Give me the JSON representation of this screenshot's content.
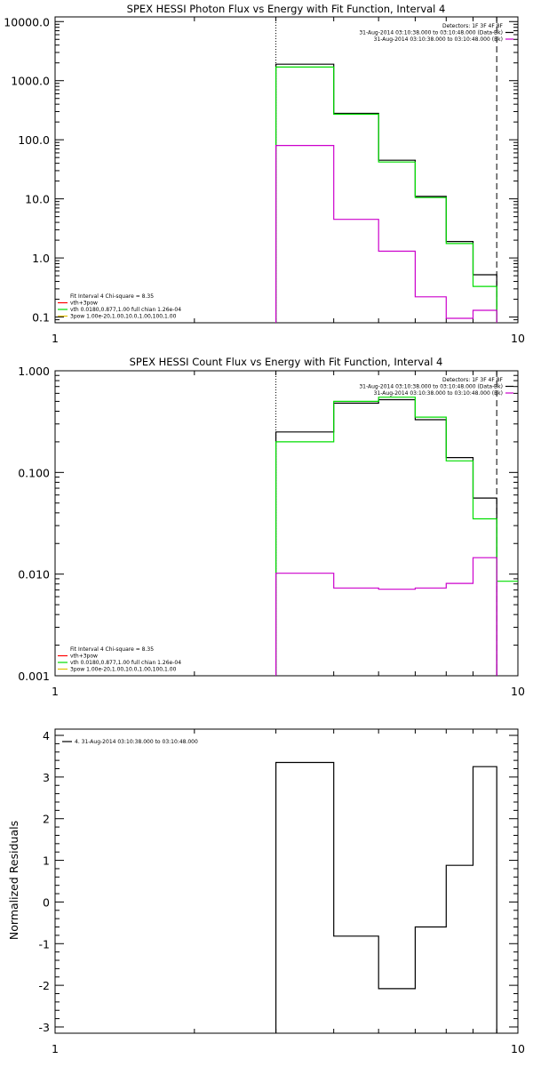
{
  "chart_data": [
    {
      "type": "line",
      "title": "SPEX HESSI Photon Flux vs Energy with Fit Function, Interval 4",
      "xscale": "log",
      "yscale": "log",
      "xlim": [
        1,
        10
      ],
      "ylim": [
        0.08,
        12000
      ],
      "xticks": [
        {
          "v": 1,
          "label": "1"
        },
        {
          "v": 10,
          "label": "10"
        }
      ],
      "yticks": [
        {
          "v": 0.1,
          "label": "0.1"
        },
        {
          "v": 1,
          "label": "1.0"
        },
        {
          "v": 10,
          "label": "10.0"
        },
        {
          "v": 100,
          "label": "100.0"
        },
        {
          "v": 1000,
          "label": "1000.0"
        },
        {
          "v": 10000,
          "label": "10000.0"
        }
      ],
      "ylabel": "",
      "xlabel": "",
      "vlines": [
        {
          "x": 3,
          "style": "dotted"
        },
        {
          "x": 9,
          "style": "dashed"
        }
      ],
      "legend_top_right": [
        "Detectors: 1F 3F 4F 8F",
        "31-Aug-2014 03:10:38.000 to 03:10:48.000 (Data-Bk)",
        "31-Aug-2014 03:10:38.000 to 03:10:48.000 (Bk)"
      ],
      "legend_top_right_colors": [
        "#ffffff",
        "#000000",
        "#cc00cc"
      ],
      "legend_bottom_left": [
        "Fit Interval 4   Chi-square = 8.35",
        "vth+3pow",
        "vth 0.0180,0.877,1.00  full chian 1.26e-04",
        "3pow 1.00e-20,1.00,10.0,1.00,100,1.00"
      ],
      "legend_bottom_left_colors": [
        "#ffffff",
        "#ff0000",
        "#00dd00",
        "#e0c000"
      ],
      "series": [
        {
          "name": "Data-Bk",
          "color": "#000000",
          "edges": [
            3,
            4,
            5,
            6,
            7,
            8,
            9
          ],
          "values": [
            1900,
            280,
            45,
            11,
            1.9,
            0.52
          ]
        },
        {
          "name": "vth",
          "color": "#00dd00",
          "edges": [
            3,
            4,
            5,
            6,
            7,
            8,
            9
          ],
          "values": [
            1700,
            270,
            42,
            10.5,
            1.75,
            0.33
          ]
        },
        {
          "name": "Bk",
          "color": "#cc00cc",
          "edges": [
            3,
            4,
            5,
            6,
            7,
            8,
            9
          ],
          "values": [
            80,
            4.5,
            1.3,
            0.22,
            0.095,
            0.13
          ]
        }
      ]
    },
    {
      "type": "line",
      "title": "SPEX HESSI Count Flux vs Energy with Fit Function, Interval 4",
      "xscale": "log",
      "yscale": "log",
      "xlim": [
        1,
        10
      ],
      "ylim": [
        0.001,
        1.0
      ],
      "xticks": [
        {
          "v": 1,
          "label": "1"
        },
        {
          "v": 10,
          "label": "10"
        }
      ],
      "yticks": [
        {
          "v": 0.001,
          "label": "0.001"
        },
        {
          "v": 0.01,
          "label": "0.010"
        },
        {
          "v": 0.1,
          "label": "0.100"
        },
        {
          "v": 1,
          "label": "1.000"
        }
      ],
      "ylabel": "",
      "xlabel": "",
      "vlines": [
        {
          "x": 3,
          "style": "dotted"
        },
        {
          "x": 9,
          "style": "dashed"
        }
      ],
      "legend_top_right": [
        "Detectors: 1F 3F 4F 8F",
        "31-Aug-2014 03:10:38.000 to 03:10:48.000 (Data-Bk)",
        "31-Aug-2014 03:10:38.000 to 03:10:48.000 (Bk)"
      ],
      "legend_top_right_colors": [
        "#ffffff",
        "#000000",
        "#cc00cc"
      ],
      "legend_bottom_left": [
        "Fit Interval 4   Chi-square = 8.35",
        "vth+3pow",
        "vth 0.0180,0.877,1.00  full chian 1.26e-04",
        "3pow 1.00e-20,1.00,10.0,1.00,100,1.00"
      ],
      "legend_bottom_left_colors": [
        "#ffffff",
        "#ff0000",
        "#00dd00",
        "#e0c000"
      ],
      "series": [
        {
          "name": "Data-Bk",
          "color": "#000000",
          "edges": [
            3,
            4,
            5,
            6,
            7,
            8,
            9
          ],
          "values": [
            0.25,
            0.48,
            0.52,
            0.33,
            0.14,
            0.056
          ]
        },
        {
          "name": "vth",
          "color": "#00dd00",
          "edges": [
            3,
            4,
            5,
            6,
            7,
            8,
            9,
            10
          ],
          "values": [
            0.2,
            0.5,
            0.55,
            0.35,
            0.13,
            0.035,
            0.0085
          ]
        },
        {
          "name": "Bk",
          "color": "#cc00cc",
          "edges": [
            3,
            4,
            5,
            6,
            7,
            8,
            9
          ],
          "values": [
            0.0102,
            0.0073,
            0.0071,
            0.0073,
            0.0081,
            0.0145
          ]
        }
      ]
    },
    {
      "type": "line",
      "title": "",
      "xscale": "log",
      "yscale": "linear",
      "xlim": [
        1,
        10
      ],
      "ylim": [
        -3.15,
        4.15
      ],
      "xticks": [
        {
          "v": 1,
          "label": "1"
        },
        {
          "v": 10,
          "label": "10"
        }
      ],
      "yticks": [
        {
          "v": -3,
          "label": "-3"
        },
        {
          "v": -2,
          "label": "-2"
        },
        {
          "v": -1,
          "label": "-1"
        },
        {
          "v": 0,
          "label": "0"
        },
        {
          "v": 1,
          "label": "1"
        },
        {
          "v": 2,
          "label": "2"
        },
        {
          "v": 3,
          "label": "3"
        },
        {
          "v": 4,
          "label": "4"
        }
      ],
      "ylabel": "Normalized Residuals",
      "xlabel": "",
      "vlines": [],
      "legend_top_left": [
        "4. 31-Aug-2014 03:10:38.000 to 03:10:48.000"
      ],
      "legend_top_left_colors": [
        "#000000"
      ],
      "series": [
        {
          "name": "4. 31-Aug-2014 03:10:38.000 to 03:10:48.000",
          "color": "#000000",
          "edges": [
            3,
            4,
            5,
            6,
            7,
            8,
            9
          ],
          "values": [
            3.35,
            -0.82,
            -2.08,
            -0.6,
            0.88,
            3.25
          ]
        }
      ]
    }
  ]
}
